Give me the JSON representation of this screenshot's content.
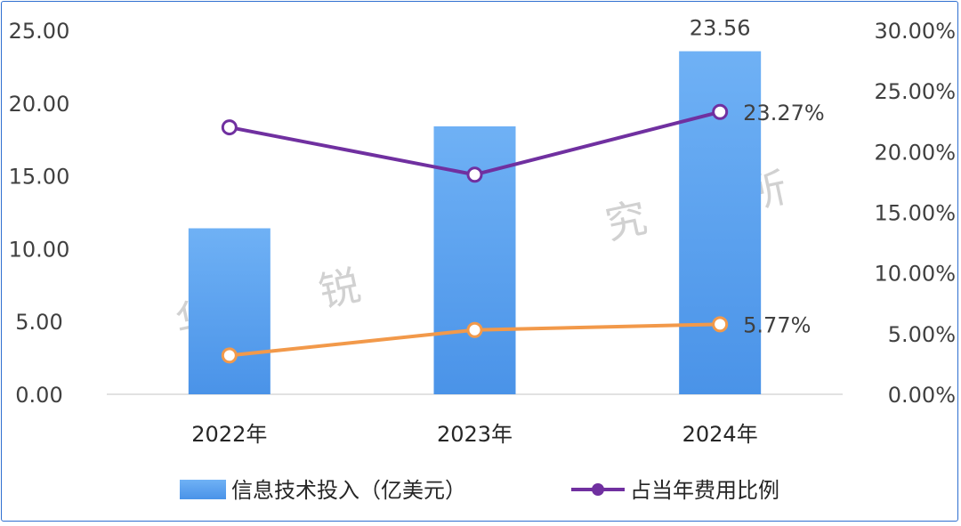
{
  "chart_data": {
    "type": "bar",
    "categories": [
      "2022年",
      "2023年",
      "2024年"
    ],
    "series": [
      {
        "name": "信息技术投入（亿美元）",
        "kind": "bar",
        "axis": "left",
        "values": [
          11.4,
          18.4,
          23.56
        ],
        "color": "#4a97ec"
      },
      {
        "name": "占当年费用比例",
        "kind": "line",
        "axis": "right",
        "values": [
          22.0,
          18.1,
          23.27
        ],
        "color": "#7030a0"
      },
      {
        "kind": "line",
        "axis": "right",
        "values": [
          3.2,
          5.3,
          5.77
        ],
        "color": "#f2994a"
      }
    ],
    "data_labels": {
      "bar_2024": "23.56",
      "purple_2024": "23.27%",
      "orange_2024": "5.77%"
    },
    "y_left": {
      "ylim": [
        0,
        25
      ],
      "ticks": [
        "0.00",
        "5.00",
        "10.00",
        "15.00",
        "20.00",
        "25.00"
      ]
    },
    "y_right": {
      "ylim": [
        0,
        30
      ],
      "ticks": [
        "0.00%",
        "5.00%",
        "10.00%",
        "15.00%",
        "20.00%",
        "25.00%",
        "30.00%"
      ]
    },
    "legend_position": "bottom",
    "grid": false,
    "watermark": [
      "华",
      "锐",
      "研",
      "究",
      "所"
    ]
  }
}
